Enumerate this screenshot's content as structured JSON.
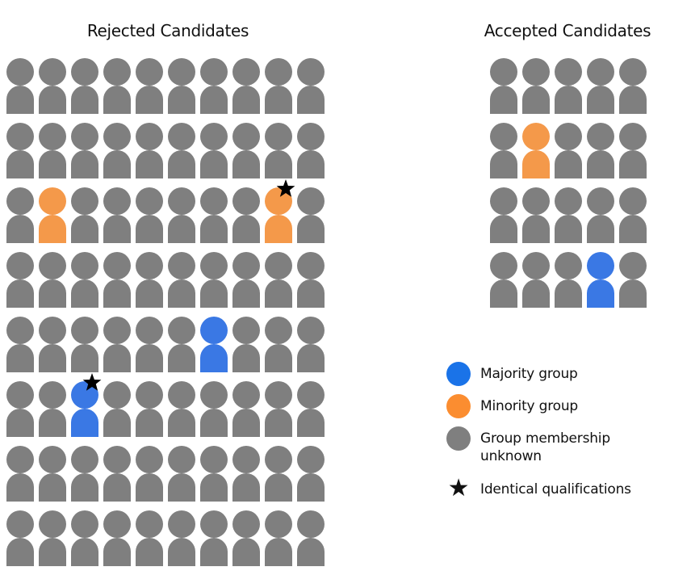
{
  "rejected": {
    "title": "Rejected Candidates",
    "rows": [
      "uuuuuuuuuu",
      "uuuuuuuuuu",
      "umuuuuuumu",
      "uuuuuuuuuu",
      "uuuuuuMuuu",
      "uuMuuuuuuu",
      "uuuuuuuuuu",
      "uuuuuuuuuu"
    ],
    "stars": [
      [
        2,
        8
      ],
      [
        5,
        2
      ]
    ]
  },
  "accepted": {
    "title": "Accepted Candidates",
    "rows": [
      "uuuuu",
      "umuuu",
      "uuuuu",
      "uuuMu"
    ],
    "stars": []
  },
  "codes": {
    "u": "unknown",
    "m": "minority",
    "M": "majority"
  },
  "colors": {
    "majority": "#1a73e8",
    "minority": "#f4994a",
    "unknown": "#7f7f7f",
    "star": "#000000"
  },
  "legend": [
    {
      "key": "majority",
      "label": "Majority group",
      "icon": "circle"
    },
    {
      "key": "minority",
      "label": "Minority group",
      "icon": "circle"
    },
    {
      "key": "unknown",
      "label": "Group membership unknown",
      "icon": "circle"
    },
    {
      "key": "star",
      "label": "Identical qualifications",
      "icon": "star-icon"
    }
  ]
}
